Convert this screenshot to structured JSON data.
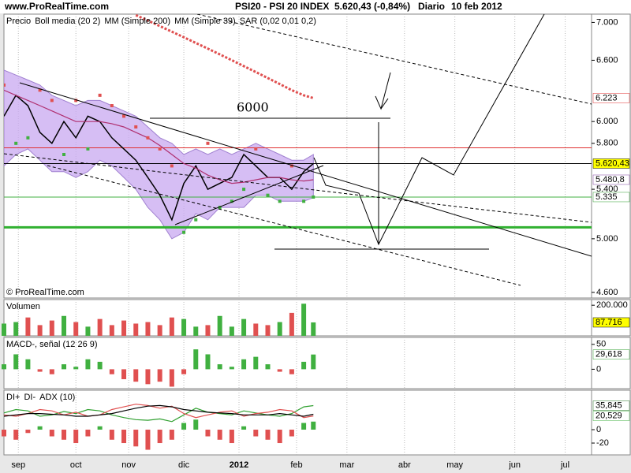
{
  "header": {
    "site": "www.ProRealTime.com",
    "symbol": "PSI20 - PSI 20 INDEX",
    "price": "5.620,43 (-0,84%)",
    "period": "Diario",
    "date": "10 feb 2012"
  },
  "chart_data": [
    {
      "type": "line",
      "log_scale": true,
      "x": [
        0,
        5,
        10,
        15,
        20,
        25,
        30,
        35,
        40,
        45,
        50,
        55,
        60,
        65,
        70,
        75,
        80,
        85,
        90,
        95,
        100,
        105,
        110,
        115,
        120,
        125,
        129
      ],
      "xlim": [
        0,
        245
      ],
      "xticks": [
        {
          "value": 6,
          "label": "sep"
        },
        {
          "value": 30,
          "label": "oct"
        },
        {
          "value": 52,
          "label": "nov"
        },
        {
          "value": 75,
          "label": "dic"
        },
        {
          "value": 98,
          "label": "2012"
        },
        {
          "value": 122,
          "label": "feb"
        },
        {
          "value": 143,
          "label": "mar"
        },
        {
          "value": 167,
          "label": "abr"
        },
        {
          "value": 188,
          "label": "may"
        },
        {
          "value": 213,
          "label": "jun"
        },
        {
          "value": 234,
          "label": "jul"
        }
      ],
      "ylim": [
        4560,
        7090
      ],
      "yticks": [
        {
          "value": 7000,
          "label": "7.000"
        },
        {
          "value": 6600,
          "label": "6.600"
        },
        {
          "value": 6000,
          "label": "6.000"
        },
        {
          "value": 5800,
          "label": "5.800"
        },
        {
          "value": 5400,
          "label": "5.400"
        },
        {
          "value": 5000,
          "label": "5.000"
        },
        {
          "value": 4600,
          "label": "4.600"
        }
      ],
      "series": [
        {
          "name": "Precio",
          "color": "#000000",
          "style": "line",
          "values": [
            6050,
            6250,
            6150,
            5900,
            5800,
            6000,
            5850,
            6050,
            6000,
            5850,
            5750,
            5650,
            5500,
            5350,
            5150,
            5450,
            5600,
            5400,
            5450,
            5500,
            5700,
            5600,
            5500,
            5500,
            5400,
            5550,
            5620.43
          ]
        },
        {
          "name": "MM (Simple 200)",
          "color": "#e05050",
          "style": "dotted",
          "values": [
            null,
            null,
            null,
            null,
            null,
            null,
            null,
            null,
            null,
            null,
            null,
            7080,
            7020,
            6960,
            6900,
            6840,
            6780,
            6720,
            6660,
            6600,
            6540,
            6480,
            6420,
            6360,
            6300,
            6250,
            6223
          ]
        },
        {
          "name": "MM (Simple 39)",
          "color": "#b03070",
          "style": "line",
          "values": [
            6300,
            6250,
            6200,
            6150,
            6100,
            6050,
            6000,
            6000,
            6000,
            5980,
            5950,
            5900,
            5850,
            5780,
            5700,
            5620,
            5580,
            5520,
            5480,
            5450,
            5460,
            5480,
            5500,
            5500,
            5480,
            5470,
            5480.8
          ]
        },
        {
          "name": "SAR (0,02 0,01 0,2)",
          "color": "#40b040",
          "above_color": "#e05050",
          "style": "dots",
          "values": [
            6350,
            5800,
            5850,
            6300,
            6200,
            5700,
            6200,
            5750,
            6250,
            6150,
            6050,
            5950,
            5850,
            5750,
            5600,
            5050,
            5150,
            5800,
            5250,
            5300,
            5400,
            5750,
            5350,
            5300,
            5600,
            5300,
            5335
          ]
        }
      ],
      "bands": {
        "name": "Boll media (20 2)",
        "color": "#c8a8f0",
        "upper": [
          6500,
          6450,
          6400,
          6350,
          6250,
          6200,
          6150,
          6200,
          6200,
          6150,
          6100,
          6050,
          5950,
          5850,
          5800,
          5700,
          5750,
          5700,
          5750,
          5700,
          5750,
          5800,
          5750,
          5700,
          5650,
          5650,
          5700
        ],
        "lower": [
          5600,
          5700,
          5750,
          5650,
          5550,
          5550,
          5500,
          5550,
          5650,
          5600,
          5500,
          5400,
          5250,
          5150,
          5000,
          5050,
          5200,
          5150,
          5250,
          5250,
          5250,
          5350,
          5350,
          5300,
          5300,
          5300,
          5330
        ]
      },
      "levels": [
        {
          "value": 5760,
          "color": "#e03030",
          "style": "thin"
        },
        {
          "value": 5620.43,
          "color": "#000000",
          "style": "thin"
        },
        {
          "value": 5335,
          "color": "#40b040",
          "style": "thin"
        },
        {
          "value": 5090,
          "color": "#30b030",
          "style": "thick"
        }
      ],
      "tags": [
        {
          "value": 6223,
          "label": "6.223",
          "color": "#e03030",
          "background": "#ffffff"
        },
        {
          "value": 5620.43,
          "label": "5.620,43",
          "color": "#000000",
          "background": "#ffff00"
        },
        {
          "value": 5480.8,
          "label": "5.480,8",
          "color": "#8040a0",
          "background": "#ffffff"
        },
        {
          "value": 5335,
          "label": "5.335",
          "color": "#30a030",
          "background": "#ffffff"
        }
      ],
      "annotation": "6000",
      "footnote": "© ProRealTime.com"
    },
    {
      "type": "bar",
      "title": "Volumen",
      "title_color": "#d03030",
      "color_by": "price",
      "up_color": "#40b040",
      "down_color": "#e05050",
      "values": [
        80000,
        90000,
        120000,
        70000,
        100000,
        130000,
        90000,
        60000,
        110000,
        70000,
        100000,
        80000,
        90000,
        70000,
        120000,
        110000,
        60000,
        70000,
        130000,
        60000,
        110000,
        80000,
        70000,
        90000,
        150000,
        210000,
        87716
      ],
      "ylim": [
        0,
        237000
      ],
      "yticks": [
        {
          "value": 200000,
          "label": "200.000"
        }
      ],
      "tags": [
        {
          "value": 87716,
          "label": "87.716",
          "color": "#000000",
          "background": "#ffff00"
        }
      ]
    },
    {
      "type": "bar",
      "title": "MACD-, señal (12 26 9)",
      "title_color": "#308030",
      "color_by": "sign",
      "up_color": "#40b040",
      "down_color": "#e05050",
      "values": [
        10,
        30,
        20,
        -5,
        -10,
        10,
        5,
        20,
        15,
        -10,
        -20,
        -25,
        -30,
        -25,
        -35,
        -10,
        40,
        30,
        10,
        5,
        20,
        25,
        10,
        -5,
        -10,
        15,
        29.618
      ],
      "ylim": [
        -39,
        64
      ],
      "yticks": [
        50,
        0
      ],
      "tags": [
        {
          "value": 29.618,
          "label": "29,618",
          "color": "#30a030",
          "background": "#ffffff"
        }
      ]
    },
    {
      "type": "line",
      "color_by": "sign",
      "up_color": "#40b040",
      "down_color": "#e05050",
      "values": [
        -10,
        -15,
        -5,
        5,
        -10,
        -15,
        -20,
        -10,
        5,
        -15,
        -20,
        -25,
        -30,
        -20,
        -15,
        10,
        15,
        -10,
        -15,
        -20,
        5,
        -10,
        -15,
        -20,
        -10,
        10,
        12
      ],
      "series": [
        {
          "name": "DI+",
          "color": "#30a030",
          "style": "line",
          "values": [
            25,
            30,
            28,
            20,
            22,
            27,
            24,
            30,
            28,
            22,
            18,
            15,
            14,
            16,
            12,
            22,
            32,
            26,
            24,
            22,
            28,
            25,
            22,
            20,
            24,
            34,
            35.845
          ]
        },
        {
          "name": "DI-",
          "color": "#e05050",
          "style": "line",
          "values": [
            22,
            20,
            24,
            30,
            28,
            22,
            26,
            20,
            22,
            30,
            34,
            38,
            36,
            32,
            35,
            24,
            18,
            22,
            26,
            28,
            20,
            24,
            26,
            30,
            28,
            18,
            20.529
          ]
        },
        {
          "name": "ADX (10)",
          "color": "#000000",
          "style": "line",
          "values": [
            20,
            22,
            24,
            24,
            23,
            22,
            20,
            20,
            22,
            24,
            28,
            32,
            35,
            36,
            34,
            30,
            28,
            26,
            25,
            24,
            22,
            22,
            22,
            24,
            22,
            20,
            23
          ]
        }
      ],
      "ylim": [
        -37.6,
        58.8
      ],
      "yticks": [
        0,
        -20
      ],
      "tags": [
        {
          "value": 35.845,
          "label": "35,845",
          "color": "#207020",
          "background": "#ffffff"
        },
        {
          "value": 20.529,
          "label": "20,529",
          "color": "#40b040",
          "background": "#ffffff"
        }
      ]
    }
  ]
}
